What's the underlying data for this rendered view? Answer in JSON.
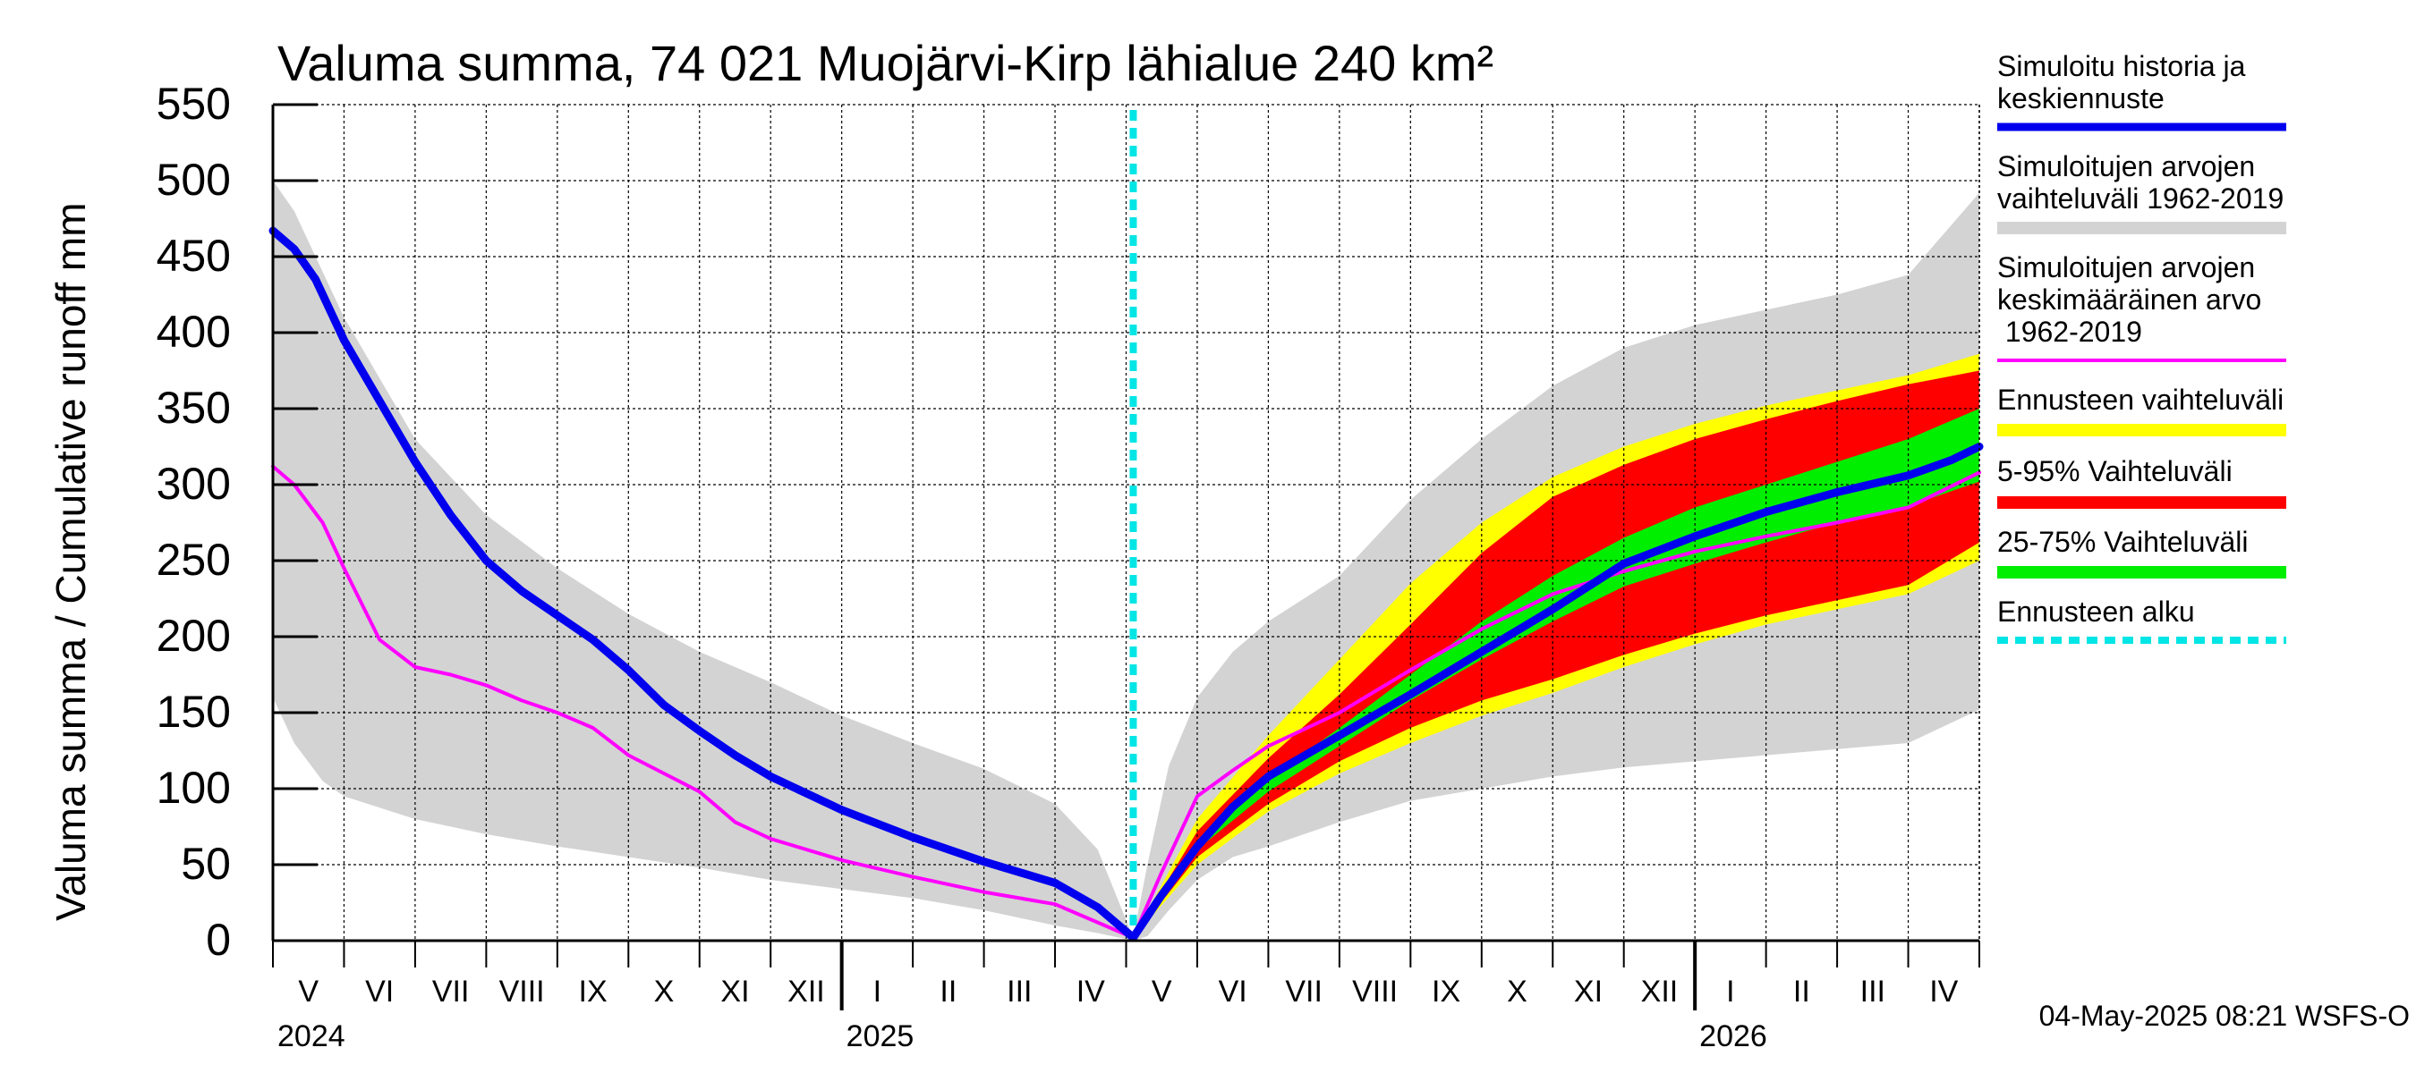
{
  "chart_data": {
    "type": "area",
    "title": "Valuma summa, 74 021 Muojärvi-Kirp lähialue 240 km²",
    "ylabel": "Valuma summa / Cumulative runoff    mm",
    "xlabel": "",
    "ylim": [
      0,
      550
    ],
    "yticks": [
      0,
      50,
      100,
      150,
      200,
      250,
      300,
      350,
      400,
      450,
      500,
      550
    ],
    "grid": true,
    "months": [
      "V",
      "VI",
      "VII",
      "VIII",
      "IX",
      "X",
      "XI",
      "XII",
      "I",
      "II",
      "III",
      "IV",
      "V",
      "VI",
      "VII",
      "VIII",
      "IX",
      "X",
      "XI",
      "XII",
      "I",
      "II",
      "III",
      "IV"
    ],
    "years": [
      "2024",
      "2025",
      "2026"
    ],
    "x_unit": "months since 2024-05-01",
    "forecast_start_x": 12.1,
    "legend": [
      {
        "label": "Simuloitu historia ja keskiennuste",
        "color": "#0000ee",
        "style": "line"
      },
      {
        "label": "Simuloitujen arvojen vaihteluväli 1962-2019",
        "color": "#d3d3d3",
        "style": "band"
      },
      {
        "label": "Simuloitujen arvojen keskimääräinen arvo 1962-2019",
        "color": "#ff00ff",
        "style": "thin-line"
      },
      {
        "label": "Ennusteen vaihteluväli",
        "color": "#ffff00",
        "style": "band"
      },
      {
        "label": "5-95% Vaihteluväli",
        "color": "#ff0000",
        "style": "band"
      },
      {
        "label": "25-75% Vaihteluväli",
        "color": "#00ee00",
        "style": "band"
      },
      {
        "label": "Ennusteen alku",
        "color": "#00e5e5",
        "style": "dashed"
      }
    ],
    "series": [
      {
        "name": "Simuloitujen arvojen vaihteluväli 1962-2019",
        "kind": "band",
        "color": "#d3d3d3",
        "x": [
          0,
          0.3,
          0.7,
          1,
          2,
          3,
          4,
          5,
          6,
          7,
          8,
          9,
          10,
          11,
          11.6,
          12.1,
          12.3,
          12.6,
          13,
          13.5,
          14,
          15,
          16,
          17,
          18,
          19,
          20,
          21,
          22,
          23,
          24
        ],
        "upper": [
          500,
          480,
          440,
          410,
          330,
          280,
          245,
          215,
          190,
          170,
          148,
          130,
          113,
          90,
          60,
          2,
          50,
          115,
          160,
          190,
          210,
          240,
          290,
          330,
          365,
          390,
          405,
          415,
          425,
          438,
          492
        ],
        "lower": [
          160,
          130,
          105,
          95,
          80,
          70,
          62,
          55,
          48,
          40,
          34,
          28,
          20,
          10,
          5,
          0,
          3,
          20,
          40,
          55,
          62,
          78,
          92,
          100,
          108,
          114,
          118,
          122,
          126,
          130,
          152
        ]
      },
      {
        "name": "Ennusteen vaihteluväli",
        "kind": "band",
        "color": "#ffff00",
        "x": [
          12.1,
          13,
          14,
          15,
          16,
          17,
          18,
          19,
          20,
          21,
          22,
          23,
          24
        ],
        "upper": [
          2,
          80,
          135,
          185,
          235,
          275,
          305,
          325,
          340,
          352,
          362,
          372,
          386
        ],
        "lower": [
          2,
          50,
          85,
          110,
          130,
          148,
          163,
          180,
          195,
          208,
          218,
          228,
          250
        ]
      },
      {
        "name": "5-95% Vaihteluväli",
        "kind": "band",
        "color": "#ff0000",
        "x": [
          12.1,
          13,
          14,
          15,
          16,
          17,
          18,
          19,
          20,
          21,
          22,
          23,
          24
        ],
        "upper": [
          2,
          72,
          120,
          162,
          208,
          255,
          292,
          313,
          330,
          343,
          355,
          366,
          375
        ],
        "lower": [
          2,
          55,
          90,
          118,
          140,
          158,
          172,
          188,
          202,
          214,
          224,
          234,
          262
        ]
      },
      {
        "name": "25-75% Vaihteluväli",
        "kind": "band",
        "color": "#00ee00",
        "x": [
          12.1,
          13,
          14,
          15,
          16,
          17,
          18,
          19,
          20,
          21,
          22,
          23,
          24
        ],
        "upper": [
          2,
          66,
          106,
          140,
          175,
          210,
          240,
          265,
          285,
          300,
          315,
          330,
          350
        ],
        "lower": [
          2,
          60,
          98,
          128,
          158,
          185,
          210,
          233,
          248,
          262,
          275,
          286,
          302
        ]
      },
      {
        "name": "Simuloitujen arvojen keskimääräinen arvo 1962-2019",
        "kind": "line",
        "color": "#ff00ff",
        "x": [
          0,
          0.3,
          0.7,
          1,
          1.5,
          2,
          2.5,
          3,
          3.5,
          4,
          4.5,
          5,
          5.5,
          6,
          6.5,
          7,
          8,
          9,
          10,
          11,
          11.6,
          12.1,
          12.5,
          13,
          13.5,
          14,
          15,
          16,
          17,
          18,
          19,
          20,
          21,
          22,
          23,
          24
        ],
        "values": [
          312,
          300,
          275,
          245,
          198,
          180,
          175,
          168,
          158,
          150,
          140,
          122,
          110,
          98,
          78,
          67,
          53,
          42,
          32,
          24,
          12,
          2,
          45,
          95,
          112,
          128,
          150,
          178,
          205,
          228,
          243,
          256,
          266,
          275,
          285,
          308
        ]
      },
      {
        "name": "Simuloitu historia ja keskiennuste",
        "kind": "line",
        "color": "#0000ee",
        "x": [
          0,
          0.3,
          0.6,
          1,
          1.5,
          2,
          2.5,
          3,
          3.5,
          4,
          4.5,
          5,
          5.5,
          6,
          6.5,
          7,
          8,
          9,
          10,
          11,
          11.6,
          12.1,
          12.5,
          13,
          13.5,
          14,
          15,
          16,
          17,
          18,
          19,
          20,
          21,
          22,
          23,
          23.6,
          24
        ],
        "values": [
          467,
          455,
          435,
          395,
          355,
          315,
          280,
          250,
          230,
          214,
          198,
          178,
          155,
          138,
          122,
          108,
          86,
          68,
          52,
          38,
          22,
          2,
          30,
          62,
          88,
          108,
          135,
          162,
          190,
          218,
          248,
          266,
          282,
          295,
          306,
          316,
          325
        ]
      }
    ]
  },
  "footer": {
    "timestamp": "04-May-2025 08:21 WSFS-O"
  }
}
